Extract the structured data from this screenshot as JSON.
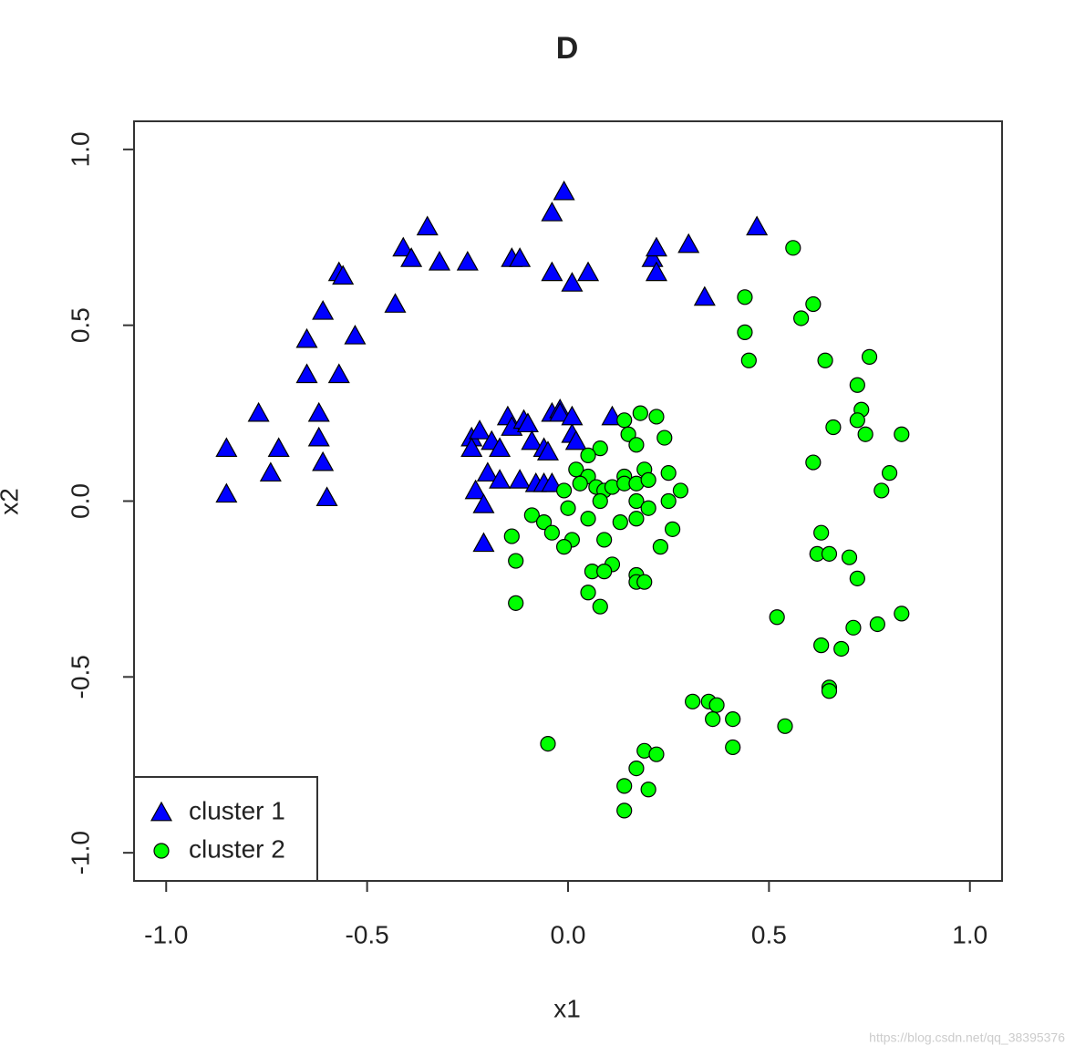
{
  "chart_data": {
    "type": "scatter",
    "title": "D",
    "xlabel": "x1",
    "ylabel": "x2",
    "xlim": [
      -1.08,
      1.08
    ],
    "ylim": [
      -1.08,
      1.08
    ],
    "xticks": [
      {
        "value": -1,
        "label": "-1.0"
      },
      -0.5,
      {
        "value": 0,
        "label": "0.0"
      },
      0.5,
      {
        "value": 1,
        "label": "1.0"
      }
    ],
    "yticks": [
      {
        "value": -1,
        "label": "-1.0"
      },
      -0.5,
      {
        "value": 0,
        "label": "0.0"
      },
      0.5,
      {
        "value": 1,
        "label": "1.0"
      }
    ],
    "legend": "bottomleft",
    "series": [
      {
        "name": "cluster 1",
        "color": "#0000ff",
        "marker": "triangle",
        "x": [
          -0.85,
          -0.85,
          -0.77,
          -0.72,
          -0.74,
          -0.65,
          -0.61,
          -0.65,
          -0.62,
          -0.62,
          -0.61,
          -0.6,
          -0.57,
          -0.56,
          -0.57,
          -0.53,
          -0.43,
          -0.41,
          -0.39,
          -0.35,
          -0.32,
          -0.25,
          -0.14,
          -0.12,
          -0.04,
          -0.01,
          -0.04,
          0.01,
          0.05,
          0.21,
          0.22,
          0.22,
          0.3,
          0.34,
          0.47,
          -0.24,
          -0.22,
          -0.24,
          -0.23,
          -0.21,
          -0.21,
          -0.2,
          -0.19,
          -0.17,
          -0.17,
          -0.15,
          -0.14,
          -0.12,
          -0.11,
          -0.1,
          -0.09,
          -0.08,
          -0.06,
          -0.06,
          -0.04,
          -0.04,
          -0.02,
          -0.02,
          0.01,
          0.01,
          0.02,
          0.11,
          -0.05
        ],
        "values": [
          0.15,
          0.02,
          0.25,
          0.15,
          0.08,
          0.46,
          0.54,
          0.36,
          0.25,
          0.18,
          0.11,
          0.01,
          0.65,
          0.64,
          0.36,
          0.47,
          0.56,
          0.72,
          0.69,
          0.78,
          0.68,
          0.68,
          0.69,
          0.69,
          0.82,
          0.88,
          0.65,
          0.62,
          0.65,
          0.69,
          0.72,
          0.65,
          0.73,
          0.58,
          0.78,
          0.18,
          0.2,
          0.15,
          0.03,
          -0.01,
          -0.12,
          0.08,
          0.17,
          0.15,
          0.06,
          0.24,
          0.21,
          0.06,
          0.23,
          0.22,
          0.17,
          0.05,
          0.15,
          0.05,
          0.25,
          0.05,
          0.26,
          0.25,
          0.19,
          0.24,
          0.17,
          0.24,
          0.14
        ]
      },
      {
        "name": "cluster 2",
        "color": "#00ff00",
        "marker": "circle",
        "x": [
          0.56,
          0.44,
          0.61,
          0.58,
          0.44,
          0.45,
          0.64,
          0.75,
          0.72,
          0.73,
          0.66,
          0.72,
          0.74,
          0.83,
          0.61,
          0.8,
          0.78,
          0.63,
          0.62,
          0.65,
          0.7,
          0.72,
          0.52,
          0.83,
          0.71,
          0.77,
          0.63,
          0.68,
          0.65,
          0.65,
          0.31,
          0.35,
          0.37,
          0.36,
          0.41,
          0.41,
          0.54,
          -0.05,
          0.19,
          0.22,
          0.17,
          0.14,
          0.2,
          0.14,
          0.14,
          0.18,
          0.22,
          0.15,
          0.17,
          0.24,
          0.08,
          0.05,
          0.02,
          0.05,
          0.07,
          0.03,
          -0.01,
          0.09,
          0.11,
          0.14,
          0.14,
          0.17,
          0.19,
          0.2,
          0.25,
          0.28,
          0.25,
          0.17,
          0.2,
          0.08,
          0.0,
          -0.09,
          0.05,
          0.13,
          0.17,
          0.26,
          -0.06,
          -0.04,
          -0.14,
          0.01,
          -0.01,
          0.09,
          0.23,
          -0.13,
          0.11,
          0.06,
          0.09,
          0.17,
          0.17,
          0.19,
          0.05,
          0.08,
          -0.13
        ],
        "values": [
          0.72,
          0.58,
          0.56,
          0.52,
          0.48,
          0.4,
          0.4,
          0.41,
          0.33,
          0.26,
          0.21,
          0.23,
          0.19,
          0.19,
          0.11,
          0.08,
          0.03,
          -0.09,
          -0.15,
          -0.15,
          -0.16,
          -0.22,
          -0.33,
          -0.32,
          -0.36,
          -0.35,
          -0.41,
          -0.42,
          -0.53,
          -0.54,
          -0.57,
          -0.57,
          -0.58,
          -0.62,
          -0.62,
          -0.7,
          -0.64,
          -0.69,
          -0.71,
          -0.72,
          -0.76,
          -0.81,
          -0.82,
          -0.88,
          0.23,
          0.25,
          0.24,
          0.19,
          0.16,
          0.18,
          0.15,
          0.13,
          0.09,
          0.07,
          0.04,
          0.05,
          0.03,
          0.03,
          0.04,
          0.07,
          0.05,
          0.05,
          0.09,
          0.06,
          0.08,
          0.03,
          0.0,
          0.0,
          -0.02,
          0.0,
          -0.02,
          -0.04,
          -0.05,
          -0.06,
          -0.05,
          -0.08,
          -0.06,
          -0.09,
          -0.1,
          -0.11,
          -0.13,
          -0.11,
          -0.13,
          -0.17,
          -0.18,
          -0.2,
          -0.2,
          -0.21,
          -0.23,
          -0.23,
          -0.26,
          -0.3,
          -0.29
        ]
      }
    ]
  },
  "watermark": "https://blog.csdn.net/qq_38395376"
}
